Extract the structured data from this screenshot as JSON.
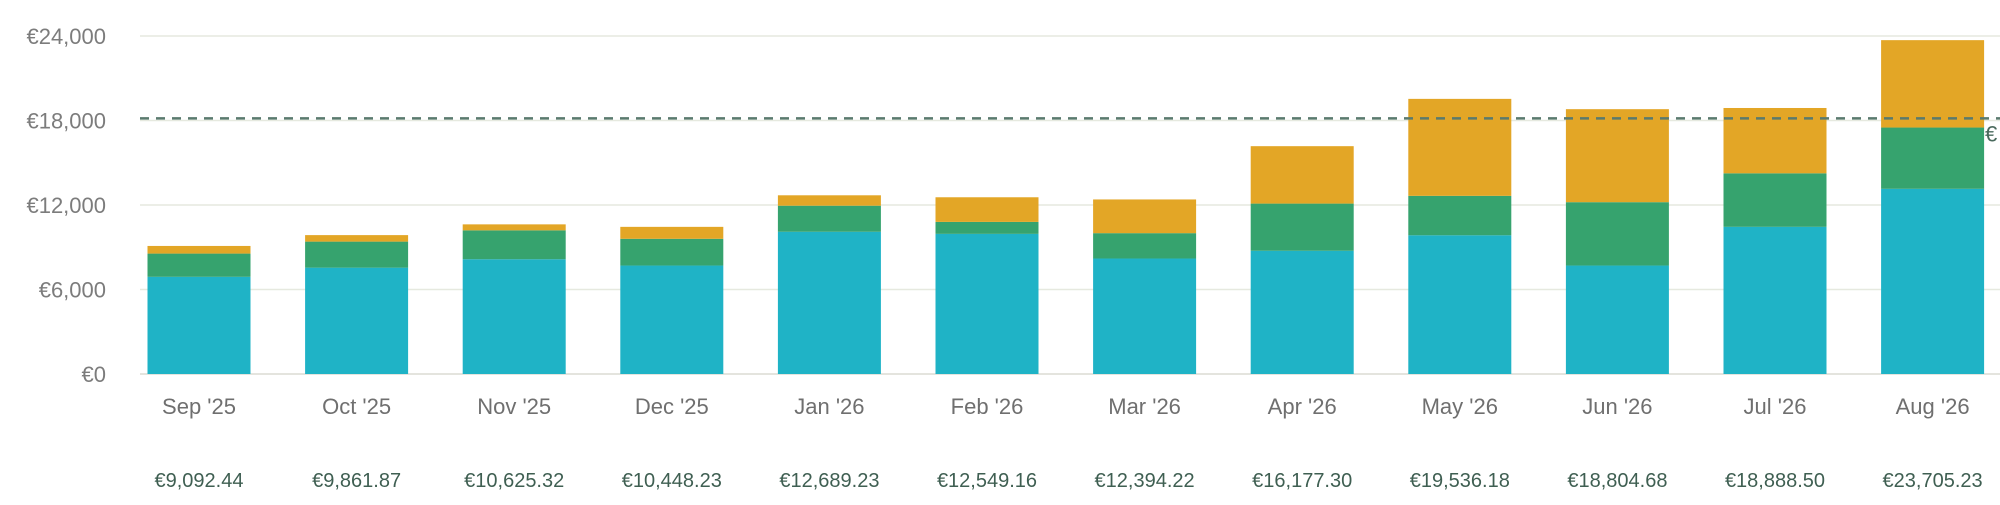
{
  "chart_data": {
    "type": "bar",
    "stacked": true,
    "currency_symbol": "€",
    "categories": [
      "Sep '25",
      "Oct '25",
      "Nov '25",
      "Dec '25",
      "Jan '26",
      "Feb '26",
      "Mar '26",
      "Apr '26",
      "May '26",
      "Jun '26",
      "Jul '26",
      "Aug '26"
    ],
    "ylim": [
      0,
      24000
    ],
    "yticks": [
      0,
      6000,
      12000,
      18000,
      24000
    ],
    "ytick_labels": [
      "€0",
      "€6,000",
      "€12,000",
      "€18,000",
      "€24,000"
    ],
    "grid": true,
    "legend": "none",
    "series": [
      {
        "color": "#1fb3c6",
        "values": [
          6900,
          7550,
          8150,
          7700,
          10100,
          9950,
          8200,
          8750,
          9850,
          7700,
          10450,
          13150
        ]
      },
      {
        "color": "#36a36e",
        "values": [
          1650,
          1850,
          2050,
          1900,
          1850,
          850,
          1800,
          3350,
          2800,
          4500,
          3800,
          4350
        ]
      },
      {
        "color": "#e3a626",
        "values": [
          542.44,
          461.87,
          425.32,
          848.23,
          739.23,
          1749.16,
          2394.22,
          4077.3,
          6886.18,
          6604.68,
          4638.5,
          6205.23
        ]
      }
    ],
    "totals": [
      "€9,092.44",
      "€9,861.87",
      "€10,625.32",
      "€10,448.23",
      "€12,689.23",
      "€12,549.16",
      "€12,394.22",
      "€16,177.30",
      "€19,536.18",
      "€18,804.68",
      "€18,888.50",
      "€23,705.23"
    ],
    "reference_line": {
      "value": 18150,
      "label": "€",
      "style": "dashed",
      "color": "#5a7a6e"
    },
    "colors": {
      "grid": "#e6e9df",
      "axis": "#dcdcd4"
    }
  }
}
